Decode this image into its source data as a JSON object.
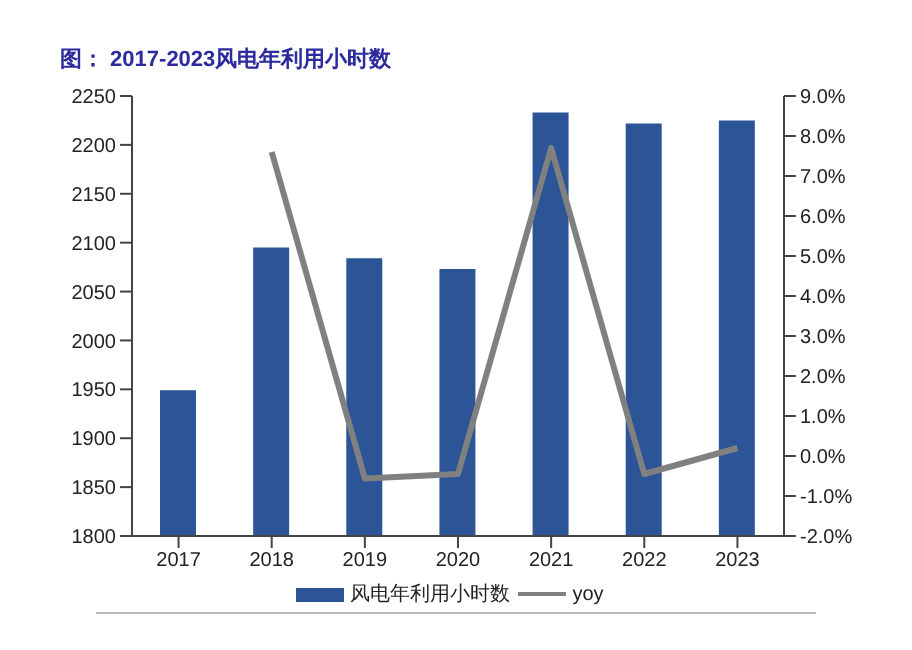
{
  "chart_data": {
    "type": "bar",
    "title": "图： 2017-2023风电年利用小时数",
    "categories": [
      "2017",
      "2018",
      "2019",
      "2020",
      "2021",
      "2022",
      "2023"
    ],
    "series": [
      {
        "name": "风电年利用小时数",
        "color": "#2b5597",
        "values": [
          1949,
          2095,
          2084,
          2073,
          2233,
          2222,
          2225
        ]
      },
      {
        "name": "yoy",
        "type": "line",
        "axis": "y2",
        "color": "#808080",
        "marker": "none",
        "values": [
          null,
          7.6,
          -0.56,
          -0.45,
          7.7,
          -0.45,
          0.2
        ]
      }
    ],
    "ylim": [
      1800,
      2250
    ],
    "yticks": [
      1800,
      1850,
      1900,
      1950,
      2000,
      2050,
      2100,
      2150,
      2200,
      2250
    ],
    "y2lim": [
      -2,
      9
    ],
    "y2ticks": [
      {
        "value": -2,
        "label": "-2.0%"
      },
      {
        "value": -1,
        "label": "-1.0%"
      },
      {
        "value": 0,
        "label": "0.0%"
      },
      {
        "value": 1,
        "label": "1.0%"
      },
      {
        "value": 2,
        "label": "2.0%"
      },
      {
        "value": 3,
        "label": "3.0%"
      },
      {
        "value": 4,
        "label": "4.0%"
      },
      {
        "value": 5,
        "label": "5.0%"
      },
      {
        "value": 6,
        "label": "6.0%"
      },
      {
        "value": 7,
        "label": "7.0%"
      },
      {
        "value": 8,
        "label": "8.0%"
      },
      {
        "value": 9,
        "label": "9.0%"
      }
    ],
    "legend": "bottom",
    "grid": false
  }
}
